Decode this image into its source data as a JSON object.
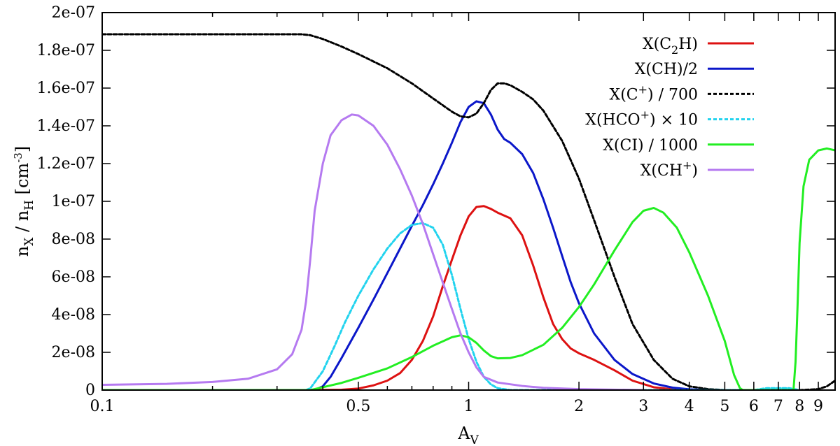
{
  "chart_data": {
    "type": "line",
    "xlabel": "A",
    "xlabel_sub": "V",
    "ylabel_parts": {
      "n": "n",
      "x_sub": "X",
      "slash": " / n",
      "h_sub": "H",
      "unit": " [cm",
      "unit_sup": "-3",
      "close": "]"
    },
    "x_scale": "log",
    "xlim": [
      0.1,
      10
    ],
    "ylim": [
      0,
      2e-07
    ],
    "grid": false,
    "legend_position": "top-right",
    "x_ticks": [
      {
        "value": 0.1,
        "label": "0.1"
      },
      {
        "value": 0.5,
        "label": "0.5"
      },
      {
        "value": 1,
        "label": "1"
      },
      {
        "value": 2,
        "label": "2"
      },
      {
        "value": 3,
        "label": "3"
      },
      {
        "value": 4,
        "label": "4"
      },
      {
        "value": 5,
        "label": "5"
      },
      {
        "value": 6,
        "label": "6"
      },
      {
        "value": 7,
        "label": "7"
      },
      {
        "value": 8,
        "label": "8"
      },
      {
        "value": 9,
        "label": "9"
      }
    ],
    "x_minor_ticks": [
      0.2,
      0.3,
      0.4,
      0.6,
      0.7,
      0.8,
      0.9
    ],
    "y_ticks": [
      {
        "value": 0,
        "label": "0"
      },
      {
        "value": 2e-08,
        "label": "2e-08"
      },
      {
        "value": 4e-08,
        "label": "4e-08"
      },
      {
        "value": 6e-08,
        "label": "6e-08"
      },
      {
        "value": 8e-08,
        "label": "8e-08"
      },
      {
        "value": 1e-07,
        "label": "1e-07"
      },
      {
        "value": 1.2e-07,
        "label": "1.2e-07"
      },
      {
        "value": 1.4e-07,
        "label": "1.4e-07"
      },
      {
        "value": 1.6e-07,
        "label": "1.6e-07"
      },
      {
        "value": 1.8e-07,
        "label": "1.8e-07"
      },
      {
        "value": 2e-07,
        "label": "2e-07"
      }
    ],
    "series": [
      {
        "id": "c2h",
        "name_parts": [
          {
            "t": "X(C"
          },
          {
            "t": "2",
            "sub": true
          },
          {
            "t": "H)"
          }
        ],
        "color": "#dd1111",
        "dash": "",
        "points": [
          [
            0.36,
            0
          ],
          [
            0.45,
            2e-10
          ],
          [
            0.5,
            8e-10
          ],
          [
            0.55,
            2.5e-09
          ],
          [
            0.6,
            5e-09
          ],
          [
            0.65,
            9e-09
          ],
          [
            0.7,
            1.6e-08
          ],
          [
            0.75,
            2.6e-08
          ],
          [
            0.8,
            3.9e-08
          ],
          [
            0.85,
            5.5e-08
          ],
          [
            0.9,
            6.9e-08
          ],
          [
            0.95,
            8.2e-08
          ],
          [
            1.0,
            9.2e-08
          ],
          [
            1.05,
            9.7e-08
          ],
          [
            1.1,
            9.75e-08
          ],
          [
            1.15,
            9.6e-08
          ],
          [
            1.2,
            9.4e-08
          ],
          [
            1.3,
            9.1e-08
          ],
          [
            1.4,
            8.2e-08
          ],
          [
            1.5,
            6.6e-08
          ],
          [
            1.6,
            4.9e-08
          ],
          [
            1.7,
            3.5e-08
          ],
          [
            1.8,
            2.7e-08
          ],
          [
            1.9,
            2.2e-08
          ],
          [
            2.0,
            1.95e-08
          ],
          [
            2.2,
            1.6e-08
          ],
          [
            2.5,
            1.05e-08
          ],
          [
            2.8,
            5e-09
          ],
          [
            3.2,
            1.5e-09
          ],
          [
            3.6,
            4e-10
          ],
          [
            4.0,
            0
          ]
        ]
      },
      {
        "id": "ch",
        "name_parts": [
          {
            "t": "X(CH)/2"
          }
        ],
        "color": "#0b17c9",
        "dash": "",
        "points": [
          [
            0.38,
            0
          ],
          [
            0.4,
            2e-09
          ],
          [
            0.42,
            7e-09
          ],
          [
            0.45,
            1.7e-08
          ],
          [
            0.5,
            3.3e-08
          ],
          [
            0.55,
            4.8e-08
          ],
          [
            0.6,
            6.2e-08
          ],
          [
            0.65,
            7.5e-08
          ],
          [
            0.7,
            8.7e-08
          ],
          [
            0.75,
            9.8e-08
          ],
          [
            0.8,
            1.09e-07
          ],
          [
            0.85,
            1.2e-07
          ],
          [
            0.9,
            1.31e-07
          ],
          [
            0.95,
            1.42e-07
          ],
          [
            1.0,
            1.5e-07
          ],
          [
            1.05,
            1.53e-07
          ],
          [
            1.1,
            1.52e-07
          ],
          [
            1.15,
            1.46e-07
          ],
          [
            1.2,
            1.38e-07
          ],
          [
            1.25,
            1.33e-07
          ],
          [
            1.3,
            1.31e-07
          ],
          [
            1.4,
            1.25e-07
          ],
          [
            1.5,
            1.15e-07
          ],
          [
            1.6,
            1.01e-07
          ],
          [
            1.7,
            8.6e-08
          ],
          [
            1.8,
            7.1e-08
          ],
          [
            1.9,
            5.7e-08
          ],
          [
            2.0,
            4.6e-08
          ],
          [
            2.2,
            3e-08
          ],
          [
            2.5,
            1.6e-08
          ],
          [
            2.8,
            8.5e-09
          ],
          [
            3.2,
            3.5e-09
          ],
          [
            3.6,
            1.3e-09
          ],
          [
            4.0,
            4e-10
          ],
          [
            4.5,
            0
          ]
        ]
      },
      {
        "id": "cplus",
        "name_parts": [
          {
            "t": "X(C"
          },
          {
            "t": "+",
            "sup": true
          },
          {
            "t": ") / 700"
          }
        ],
        "color": "#000000",
        "dash": "5,3",
        "points": [
          [
            0.1,
            1.885e-07
          ],
          [
            0.2,
            1.885e-07
          ],
          [
            0.35,
            1.885e-07
          ],
          [
            0.37,
            1.88e-07
          ],
          [
            0.4,
            1.86e-07
          ],
          [
            0.45,
            1.82e-07
          ],
          [
            0.5,
            1.78e-07
          ],
          [
            0.6,
            1.705e-07
          ],
          [
            0.7,
            1.625e-07
          ],
          [
            0.8,
            1.545e-07
          ],
          [
            0.9,
            1.475e-07
          ],
          [
            0.95,
            1.45e-07
          ],
          [
            1.0,
            1.445e-07
          ],
          [
            1.05,
            1.465e-07
          ],
          [
            1.1,
            1.52e-07
          ],
          [
            1.15,
            1.59e-07
          ],
          [
            1.2,
            1.625e-07
          ],
          [
            1.25,
            1.625e-07
          ],
          [
            1.3,
            1.615e-07
          ],
          [
            1.4,
            1.58e-07
          ],
          [
            1.5,
            1.54e-07
          ],
          [
            1.6,
            1.48e-07
          ],
          [
            1.8,
            1.32e-07
          ],
          [
            2.0,
            1.12e-07
          ],
          [
            2.2,
            9e-08
          ],
          [
            2.5,
            6e-08
          ],
          [
            2.8,
            3.5e-08
          ],
          [
            3.2,
            1.6e-08
          ],
          [
            3.6,
            6e-09
          ],
          [
            4.0,
            2e-09
          ],
          [
            4.5,
            5e-10
          ],
          [
            5.0,
            0
          ],
          [
            8.0,
            0
          ],
          [
            9.0,
            5e-10
          ],
          [
            9.5,
            2e-09
          ],
          [
            10.0,
            5e-09
          ]
        ]
      },
      {
        "id": "hcoplus",
        "name_parts": [
          {
            "t": "X(HCO"
          },
          {
            "t": "+",
            "sup": true
          },
          {
            "t": ") × 10"
          }
        ],
        "color": "#22d3ee",
        "dash": "5,3",
        "points": [
          [
            0.36,
            0
          ],
          [
            0.37,
            1e-09
          ],
          [
            0.4,
            1e-08
          ],
          [
            0.43,
            2.3e-08
          ],
          [
            0.46,
            3.6e-08
          ],
          [
            0.5,
            5e-08
          ],
          [
            0.55,
            6.4e-08
          ],
          [
            0.6,
            7.5e-08
          ],
          [
            0.65,
            8.3e-08
          ],
          [
            0.7,
            8.75e-08
          ],
          [
            0.75,
            8.85e-08
          ],
          [
            0.8,
            8.6e-08
          ],
          [
            0.85,
            7.7e-08
          ],
          [
            0.9,
            6.1e-08
          ],
          [
            0.95,
            4.3e-08
          ],
          [
            1.0,
            2.7e-08
          ],
          [
            1.05,
            1.5e-08
          ],
          [
            1.1,
            7e-09
          ],
          [
            1.15,
            3e-09
          ],
          [
            1.2,
            1e-09
          ],
          [
            1.3,
            0
          ],
          [
            6.0,
            0
          ],
          [
            6.5,
            1e-09
          ],
          [
            7.0,
            1e-09
          ],
          [
            7.5,
            1e-09
          ],
          [
            8.0,
            0
          ]
        ]
      },
      {
        "id": "ci",
        "name_parts": [
          {
            "t": "X(CI) / 1000"
          }
        ],
        "color": "#22ee22",
        "dash": "",
        "points": [
          [
            0.1,
            0
          ],
          [
            0.37,
            0
          ],
          [
            0.4,
            1.5e-09
          ],
          [
            0.45,
            3.8e-09
          ],
          [
            0.5,
            6.5e-09
          ],
          [
            0.6,
            1.15e-08
          ],
          [
            0.7,
            1.75e-08
          ],
          [
            0.8,
            2.35e-08
          ],
          [
            0.9,
            2.8e-08
          ],
          [
            0.95,
            2.9e-08
          ],
          [
            1.0,
            2.8e-08
          ],
          [
            1.05,
            2.5e-08
          ],
          [
            1.1,
            2.1e-08
          ],
          [
            1.15,
            1.8e-08
          ],
          [
            1.2,
            1.68e-08
          ],
          [
            1.3,
            1.7e-08
          ],
          [
            1.4,
            1.85e-08
          ],
          [
            1.6,
            2.4e-08
          ],
          [
            1.8,
            3.3e-08
          ],
          [
            2.0,
            4.4e-08
          ],
          [
            2.2,
            5.6e-08
          ],
          [
            2.5,
            7.4e-08
          ],
          [
            2.8,
            8.9e-08
          ],
          [
            3.0,
            9.5e-08
          ],
          [
            3.2,
            9.65e-08
          ],
          [
            3.4,
            9.4e-08
          ],
          [
            3.7,
            8.6e-08
          ],
          [
            4.0,
            7.3e-08
          ],
          [
            4.5,
            5e-08
          ],
          [
            5.0,
            2.6e-08
          ],
          [
            5.3,
            8e-09
          ],
          [
            5.5,
            1e-09
          ],
          [
            5.6,
            0
          ],
          [
            7.7,
            0
          ],
          [
            7.8,
            1.5e-08
          ],
          [
            7.9,
            4.5e-08
          ],
          [
            8.0,
            7.8e-08
          ],
          [
            8.2,
            1.08e-07
          ],
          [
            8.5,
            1.22e-07
          ],
          [
            9.0,
            1.27e-07
          ],
          [
            9.5,
            1.28e-07
          ],
          [
            10.0,
            1.27e-07
          ]
        ]
      },
      {
        "id": "chplus",
        "name_parts": [
          {
            "t": "X(CH"
          },
          {
            "t": "+",
            "sup": true
          },
          {
            "t": ")"
          }
        ],
        "color": "#b57af0",
        "dash": "",
        "points": [
          [
            0.1,
            2.8e-09
          ],
          [
            0.15,
            3.3e-09
          ],
          [
            0.2,
            4.3e-09
          ],
          [
            0.25,
            6e-09
          ],
          [
            0.3,
            1.1e-08
          ],
          [
            0.33,
            1.9e-08
          ],
          [
            0.35,
            3.2e-08
          ],
          [
            0.36,
            4.7e-08
          ],
          [
            0.37,
            7e-08
          ],
          [
            0.38,
            9.5e-08
          ],
          [
            0.4,
            1.2e-07
          ],
          [
            0.42,
            1.35e-07
          ],
          [
            0.45,
            1.43e-07
          ],
          [
            0.48,
            1.46e-07
          ],
          [
            0.5,
            1.455e-07
          ],
          [
            0.55,
            1.4e-07
          ],
          [
            0.6,
            1.3e-07
          ],
          [
            0.65,
            1.17e-07
          ],
          [
            0.7,
            1.03e-07
          ],
          [
            0.75,
            8.8e-08
          ],
          [
            0.8,
            7.2e-08
          ],
          [
            0.85,
            5.7e-08
          ],
          [
            0.9,
            4.3e-08
          ],
          [
            0.95,
            3e-08
          ],
          [
            1.0,
            2e-08
          ],
          [
            1.05,
            1.2e-08
          ],
          [
            1.1,
            7e-09
          ],
          [
            1.2,
            4e-09
          ],
          [
            1.4,
            2.2e-09
          ],
          [
            1.6,
            1.2e-09
          ],
          [
            2.0,
            5e-10
          ],
          [
            3.0,
            0
          ]
        ]
      }
    ]
  }
}
